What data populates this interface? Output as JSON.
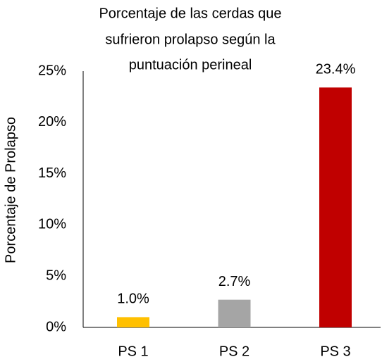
{
  "chart_data": {
    "type": "bar",
    "title": [
      "Porcentaje de las cerdas que",
      "sufrieron prolapso según la",
      "puntuación perineal"
    ],
    "y_label": "Porcentaje de Prolapso",
    "categories": [
      "PS 1",
      "PS 2",
      "PS 3"
    ],
    "values": [
      1.0,
      2.7,
      23.4
    ],
    "value_labels": [
      "1.0%",
      "2.7%",
      "23.4%"
    ],
    "colors": [
      "#ffc000",
      "#a5a5a5",
      "#c00000"
    ],
    "ylim": [
      0,
      25
    ],
    "yticks": [
      {
        "value": 0,
        "label": "0%"
      },
      {
        "value": 5,
        "label": "5%"
      },
      {
        "value": 10,
        "label": "10%"
      },
      {
        "value": 15,
        "label": "15%"
      },
      {
        "value": 20,
        "label": "20%"
      },
      {
        "value": 25,
        "label": "25%"
      }
    ],
    "grid": false
  }
}
